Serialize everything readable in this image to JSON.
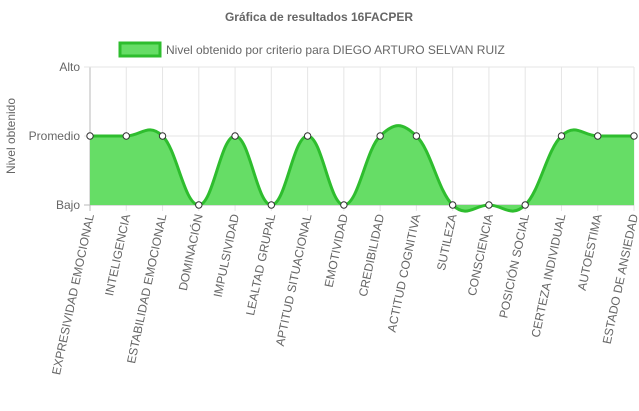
{
  "chart_data": {
    "type": "area",
    "title": "Gráfica de resultados 16FACPER",
    "xlabel": "",
    "ylabel": "Nivel obtenido",
    "y_categories": [
      "Bajo",
      "Promedio",
      "Alto"
    ],
    "ylim": [
      0,
      2
    ],
    "grid": true,
    "legend_position": "top",
    "categories": [
      "EXPRESIVIDAD EMOCIONAL",
      "INTELIGENCIA",
      "ESTABILIDAD EMOCIONAL",
      "DOMINACIÓN",
      "IMPULSIVIDAD",
      "LEALTAD GRUPAL",
      "APTITUD SITUACIONAL",
      "EMOTIVIDAD",
      "CREDIBILIDAD",
      "ACTITUD COGNITIVA",
      "SUTILEZA",
      "CONSCIENCIA",
      "POSICIÓN SOCIAL",
      "CERTEZA INDIVIDUAL",
      "AUTOESTIMA",
      "ESTADO DE ANSIEDAD"
    ],
    "series": [
      {
        "name": "Nivel obtenido por criterio para DIEGO ARTURO SELVAN RUIZ",
        "values": [
          1,
          1,
          1,
          0,
          1,
          0,
          1,
          0,
          1,
          1,
          0,
          0,
          0,
          1,
          1,
          1
        ],
        "line_color": "#2ebd2e",
        "fill_color": "#66dd66"
      }
    ]
  }
}
